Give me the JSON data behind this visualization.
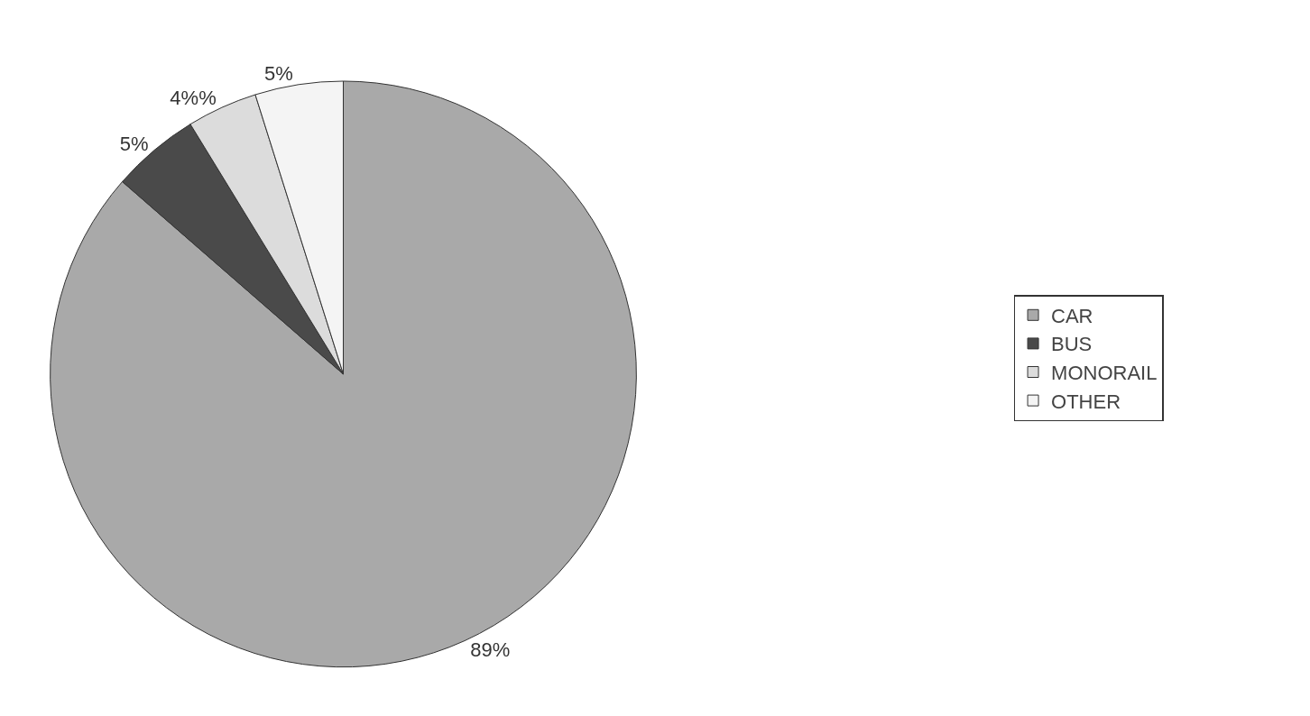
{
  "chart_data": {
    "type": "pie",
    "categories": [
      "CAR",
      "BUS",
      "MONORAIL",
      "OTHER"
    ],
    "values": [
      89,
      5,
      4,
      5
    ],
    "value_labels": [
      "89%",
      "5%",
      "4%%",
      "5%"
    ],
    "colors": [
      "#a9a9a9",
      "#4a4a4a",
      "#dcdcdc",
      "#f4f4f4"
    ],
    "legend": "right"
  }
}
